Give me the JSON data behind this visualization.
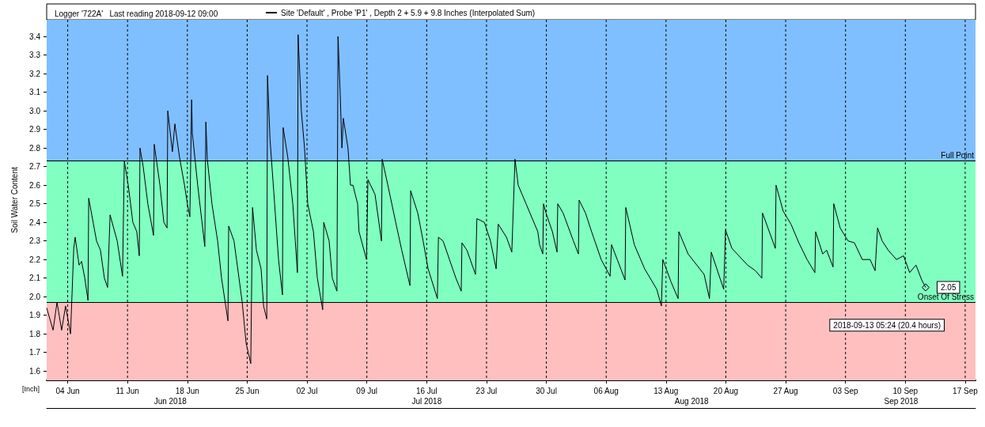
{
  "chart_data": {
    "type": "line",
    "title": "Logger '722A'   Last reading 2018-09-12 09:00",
    "ylabel": "Soil Water Content",
    "legend": "top",
    "grid": "x",
    "marker": "none",
    "line_style": "solid",
    "xlim": [
      "2018-06-01T13:00",
      "2018-09-18T05:00"
    ],
    "xticks": [
      {
        "value": "2018-06-04",
        "label": "04 Jun"
      },
      {
        "value": "2018-06-11",
        "label": "11 Jun"
      },
      {
        "value": "2018-06-18",
        "label": "18 Jun"
      },
      {
        "value": "2018-06-25",
        "label": "25 Jun"
      },
      {
        "value": "2018-07-02",
        "label": "02 Jul"
      },
      {
        "value": "2018-07-09",
        "label": "09 Jul"
      },
      {
        "value": "2018-07-16",
        "label": "16 Jul"
      },
      {
        "value": "2018-07-23",
        "label": "23 Jul"
      },
      {
        "value": "2018-07-30",
        "label": "30 Jul"
      },
      {
        "value": "2018-08-06",
        "label": "06 Aug"
      },
      {
        "value": "2018-08-13",
        "label": "13 Aug"
      },
      {
        "value": "2018-08-20",
        "label": "20 Aug"
      },
      {
        "value": "2018-08-27",
        "label": "27 Aug"
      },
      {
        "value": "2018-09-03",
        "label": "03 Sep"
      },
      {
        "value": "2018-09-10",
        "label": "10 Sep"
      },
      {
        "value": "2018-09-17",
        "label": "17 Sep"
      }
    ],
    "x2lim": [
      "2018-06-01T13:00",
      "2018-09-18T05:00"
    ],
    "x2ticks": [
      {
        "value": "2018-06-16",
        "label": "Jun 2018"
      },
      {
        "value": "2018-07-16",
        "label": "Jul 2018"
      },
      {
        "value": "2018-08-16",
        "label": "Aug 2018"
      },
      {
        "value": "2018-09-09T12:00",
        "label": "Sep 2018"
      }
    ],
    "ylim": [
      1.55,
      3.49
    ],
    "yticks": [
      1.6,
      1.7,
      1.8,
      1.9,
      {
        "value": 2.0,
        "label": "2.0"
      },
      2.1,
      2.2,
      2.3,
      2.4,
      2.5,
      2.6,
      2.7,
      2.8,
      2.9,
      {
        "value": 3.0,
        "label": "3.0"
      },
      3.1,
      3.2,
      3.3,
      3.4
    ],
    "bands": [
      {
        "axis": "y",
        "from": 2.73,
        "to": 3.49,
        "color": "#80bfff"
      },
      {
        "axis": "y",
        "from": 1.97,
        "to": 2.73,
        "color": "#80ffc0"
      },
      {
        "axis": "y",
        "from": 1.55,
        "to": 1.97,
        "color": "#ffbfbf"
      }
    ],
    "ref_lines": [
      {
        "axis": "y",
        "value": 2.73,
        "label": "Full Point",
        "color": "#000000"
      },
      {
        "axis": "y",
        "value": 1.97,
        "label": "Onset Of Stress",
        "color": "#000000"
      }
    ],
    "annotations": [
      {
        "text": "2.05",
        "x": "2018-09-12T09:00",
        "y": 2.05
      },
      {
        "text": "2018-09-13 05:24 (20.4 hours)",
        "x": "2018-09-13T05:24",
        "y": 1.97
      },
      "[Inch]"
    ],
    "series": [
      {
        "name": "Site 'Default' , Probe 'P1' , Depth 2 + 5.9 + 9.8 Inches (Interpolated Sum)",
        "color": "#000000",
        "x": [
          "2018-06-01T13:00",
          "2018-06-02T07:00",
          "2018-06-02T18:00",
          "2018-06-03T07:00",
          "2018-06-03T18:00",
          "2018-06-04T08:00",
          "2018-06-04T17:00",
          "2018-06-04T21:00",
          "2018-06-05T08:00",
          "2018-06-05T15:00",
          "2018-06-06T00:00",
          "2018-06-06T09:00",
          "2018-06-06T11:00",
          "2018-06-07T09:00",
          "2018-06-07T20:00",
          "2018-06-08T07:00",
          "2018-06-08T16:00",
          "2018-06-08T23:00",
          "2018-06-09T19:00",
          "2018-06-10T10:00",
          "2018-06-10T15:00",
          "2018-06-11T02:00",
          "2018-06-11T15:00",
          "2018-06-12T02:00",
          "2018-06-12T09:00",
          "2018-06-12T11:00",
          "2018-06-12T20:00",
          "2018-06-13T09:00",
          "2018-06-14T01:00",
          "2018-06-14T03:00",
          "2018-06-14T19:00",
          "2018-06-15T06:00",
          "2018-06-15T15:00",
          "2018-06-15T17:00",
          "2018-06-16T06:00",
          "2018-06-16T13:00",
          "2018-06-16T15:00",
          "2018-06-17T02:00",
          "2018-06-17T16:00",
          "2018-06-18T00:00",
          "2018-06-18T07:00",
          "2018-06-18T12:00",
          "2018-06-18T14:00",
          "2018-06-19T05:00",
          "2018-06-20T01:00",
          "2018-06-20T04:00",
          "2018-06-20T08:00",
          "2018-06-20T21:00",
          "2018-06-21T13:00",
          "2018-06-22T00:00",
          "2018-06-22T18:00",
          "2018-06-22T20:00",
          "2018-06-23T11:00",
          "2018-06-24T01:00",
          "2018-06-24T10:00",
          "2018-06-24T21:00",
          "2018-06-25T10:00",
          "2018-06-25T15:00",
          "2018-06-26T02:00",
          "2018-06-26T15:00",
          "2018-06-26T22:00",
          "2018-06-27T07:00",
          "2018-06-27T09:00",
          "2018-06-27T16:00",
          "2018-06-28T05:00",
          "2018-06-28T16:00",
          "2018-06-29T03:00",
          "2018-06-29T05:00",
          "2018-06-29T18:00",
          "2018-06-30T08:00",
          "2018-06-30T15:00",
          "2018-06-30T21:00",
          "2018-06-30T23:00",
          "2018-07-01T08:00",
          "2018-07-01T17:00",
          "2018-07-02T02:00",
          "2018-07-02T18:00",
          "2018-07-03T05:00",
          "2018-07-03T20:00",
          "2018-07-03T23:00",
          "2018-07-04T14:00",
          "2018-07-04T23:00",
          "2018-07-05T12:00",
          "2018-07-05T15:00",
          "2018-07-05T21:00",
          "2018-07-06T02:00",
          "2018-07-06T06:00",
          "2018-07-06T19:00",
          "2018-07-07T02:00",
          "2018-07-07T09:00",
          "2018-07-07T22:00",
          "2018-07-08T02:00",
          "2018-07-08T23:00",
          "2018-07-09T03:00",
          "2018-07-09T23:00",
          "2018-07-10T17:00",
          "2018-07-10T19:00",
          "2018-07-11T11:00",
          "2018-07-12T09:00",
          "2018-07-13T02:00",
          "2018-07-14T01:00",
          "2018-07-14T03:00",
          "2018-07-14T23:00",
          "2018-07-15T14:00",
          "2018-07-16T04:00",
          "2018-07-17T06:00",
          "2018-07-17T09:00",
          "2018-07-17T22:00",
          "2018-07-18T16:00",
          "2018-07-19T10:00",
          "2018-07-20T01:00",
          "2018-07-20T03:00",
          "2018-07-20T17:00",
          "2018-07-21T17:00",
          "2018-07-21T21:00",
          "2018-07-22T18:00",
          "2018-07-23T11:00",
          "2018-07-24T03:00",
          "2018-07-24T09:00",
          "2018-07-25T08:00",
          "2018-07-25T23:00",
          "2018-07-26T08:00",
          "2018-07-26T17:00",
          "2018-07-27T15:00",
          "2018-07-29T00:00",
          "2018-07-29T05:00",
          "2018-07-29T14:00",
          "2018-07-29T16:00",
          "2018-07-29T23:00",
          "2018-07-30T17:00",
          "2018-07-31T06:00",
          "2018-07-31T08:00",
          "2018-07-31T23:00",
          "2018-08-02T04:00",
          "2018-08-02T18:00",
          "2018-08-02T20:00",
          "2018-08-03T14:00",
          "2018-08-04T07:00",
          "2018-08-05T10:00",
          "2018-08-06T11:00",
          "2018-08-06T15:00",
          "2018-08-07T07:00",
          "2018-08-08T05:00",
          "2018-08-08T07:00",
          "2018-08-09T07:00",
          "2018-08-10T12:00",
          "2018-08-11T22:00",
          "2018-08-12T11:00",
          "2018-08-12T15:00",
          "2018-08-13T14:00",
          "2018-08-14T10:00",
          "2018-08-14T12:00",
          "2018-08-15T14:00",
          "2018-08-17T11:00",
          "2018-08-18T02:00",
          "2018-08-18T07:00",
          "2018-08-19T18:00",
          "2018-08-19T23:00",
          "2018-08-20T17:00",
          "2018-08-22T13:00",
          "2018-08-23T11:00",
          "2018-08-24T05:00",
          "2018-08-24T07:00",
          "2018-08-25T19:00",
          "2018-08-25T21:00",
          "2018-08-26T17:00",
          "2018-08-27T15:00",
          "2018-08-28T13:00",
          "2018-08-29T12:00",
          "2018-08-30T10:00",
          "2018-08-30T12:00",
          "2018-08-31T08:00",
          "2018-08-31T19:00",
          "2018-09-01T13:00",
          "2018-09-01T15:00",
          "2018-09-02T09:00",
          "2018-09-03T07:00",
          "2018-09-04T01:00",
          "2018-09-04T23:00",
          "2018-09-05T21:00",
          "2018-09-06T11:00",
          "2018-09-06T18:00",
          "2018-09-07T07:00",
          "2018-09-08T00:00",
          "2018-09-08T23:00",
          "2018-09-09T19:00",
          "2018-09-10T12:00",
          "2018-09-11T06:00",
          "2018-09-11T22:00",
          "2018-09-12T09:00"
        ],
        "values": [
          1.94,
          1.82,
          1.97,
          1.82,
          1.95,
          1.8,
          2.26,
          2.32,
          2.17,
          2.19,
          2.1,
          1.98,
          2.53,
          2.3,
          2.25,
          2.1,
          2.05,
          2.44,
          2.3,
          2.11,
          2.73,
          2.6,
          2.4,
          2.35,
          2.22,
          2.8,
          2.7,
          2.5,
          2.33,
          2.82,
          2.6,
          2.4,
          2.37,
          3.0,
          2.78,
          2.93,
          2.9,
          2.75,
          2.6,
          2.5,
          2.43,
          3.06,
          2.88,
          2.6,
          2.27,
          2.94,
          2.74,
          2.5,
          2.3,
          2.1,
          1.87,
          2.38,
          2.3,
          2.1,
          1.97,
          1.75,
          1.64,
          2.48,
          2.25,
          2.15,
          1.95,
          1.88,
          3.19,
          2.85,
          2.5,
          2.2,
          2.01,
          2.91,
          2.75,
          2.5,
          2.3,
          2.13,
          3.41,
          3.0,
          2.8,
          2.5,
          2.35,
          2.1,
          1.93,
          2.4,
          2.3,
          2.1,
          2.03,
          3.4,
          3.1,
          2.8,
          2.96,
          2.8,
          2.6,
          2.6,
          2.5,
          2.35,
          2.2,
          2.63,
          2.55,
          2.3,
          2.74,
          2.6,
          2.4,
          2.25,
          2.06,
          2.57,
          2.45,
          2.3,
          2.15,
          1.99,
          2.32,
          2.3,
          2.2,
          2.1,
          2.03,
          2.29,
          2.25,
          2.12,
          2.42,
          2.4,
          2.3,
          2.15,
          2.39,
          2.32,
          2.24,
          2.74,
          2.6,
          2.5,
          2.35,
          2.28,
          2.23,
          2.5,
          2.45,
          2.35,
          2.24,
          2.5,
          2.45,
          2.3,
          2.23,
          2.52,
          2.45,
          2.35,
          2.2,
          2.11,
          2.28,
          2.2,
          2.09,
          2.48,
          2.28,
          2.15,
          2.04,
          1.95,
          2.2,
          2.08,
          1.99,
          2.35,
          2.23,
          2.12,
          1.99,
          2.24,
          2.04,
          2.36,
          2.26,
          2.17,
          2.14,
          2.1,
          2.45,
          2.26,
          2.6,
          2.46,
          2.39,
          2.29,
          2.2,
          2.13,
          2.35,
          2.23,
          2.25,
          2.16,
          2.5,
          2.37,
          2.3,
          2.29,
          2.2,
          2.2,
          2.14,
          2.37,
          2.3,
          2.25,
          2.2,
          2.22,
          2.13,
          2.17,
          2.09,
          2.05
        ]
      }
    ]
  }
}
